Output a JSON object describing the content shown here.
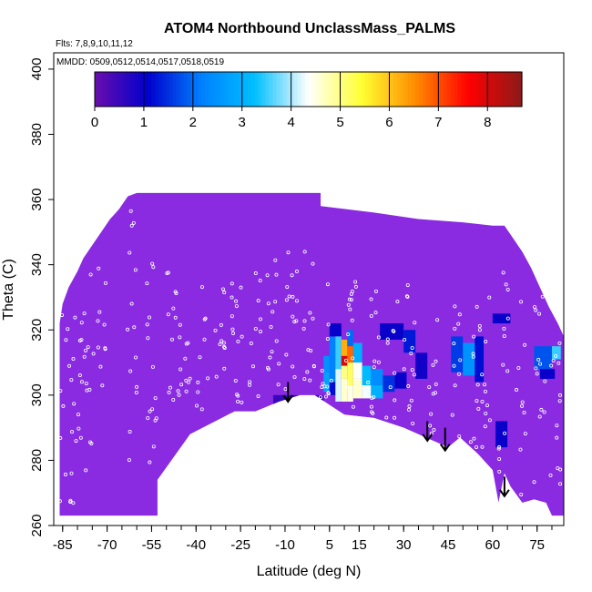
{
  "chart_data": {
    "type": "heatmap",
    "title": "ATOM4 Northbound UnclassMass_PALMS",
    "subtitle_flights": "Flts: 7,8,9,10,11,12",
    "subtitle_dates": "MMDD: 0509,0512,0514,0517,0518,0519",
    "xlabel": "Latitude (deg N)",
    "ylabel": "Theta (C)",
    "xlim": [
      -88,
      84
    ],
    "ylim": [
      260,
      405
    ],
    "x_ticks": [
      -85,
      -70,
      -55,
      -40,
      -25,
      -10,
      5,
      15,
      30,
      45,
      60,
      75
    ],
    "y_ticks": [
      260,
      280,
      300,
      320,
      340,
      360,
      380,
      400
    ],
    "colorbar": {
      "min": 0,
      "max": 8.7,
      "ticks": [
        0,
        1,
        2,
        3,
        4,
        5,
        6,
        7,
        8
      ],
      "colors": [
        "#6a0dad",
        "#0000cd",
        "#0080ff",
        "#00bfff",
        "#ffffff",
        "#ffff33",
        "#ff8c00",
        "#ff0000",
        "#8b1a1a"
      ]
    },
    "background_color": "#8a2be2",
    "domain_top": [
      [
        -86,
        322
      ],
      [
        -85,
        328
      ],
      [
        -83,
        333
      ],
      [
        -80,
        338
      ],
      [
        -78,
        342
      ],
      [
        -75,
        346
      ],
      [
        -72,
        350
      ],
      [
        -69,
        354
      ],
      [
        -66,
        357
      ],
      [
        -63,
        361
      ],
      [
        -60,
        362
      ],
      [
        2,
        362
      ],
      [
        2,
        358
      ],
      [
        20,
        356
      ],
      [
        35,
        354
      ],
      [
        50,
        353
      ],
      [
        60,
        352
      ],
      [
        64,
        352
      ],
      [
        67,
        348
      ],
      [
        70,
        344
      ],
      [
        73,
        339
      ],
      [
        76,
        333
      ],
      [
        79,
        327
      ],
      [
        82,
        322
      ],
      [
        84,
        318
      ]
    ],
    "ground": [
      [
        -86,
        263
      ],
      [
        -53,
        263
      ],
      [
        -53,
        274
      ],
      [
        -42,
        288
      ],
      [
        -27,
        295
      ],
      [
        -20,
        295
      ],
      [
        -12,
        298
      ],
      [
        -5,
        300
      ],
      [
        0,
        300
      ],
      [
        5,
        297
      ],
      [
        10,
        294
      ],
      [
        20,
        293
      ],
      [
        30,
        290
      ],
      [
        40,
        286
      ],
      [
        45,
        284
      ],
      [
        49,
        287
      ],
      [
        55,
        282
      ],
      [
        60,
        277
      ],
      [
        62,
        267
      ],
      [
        64,
        276
      ],
      [
        66,
        272
      ],
      [
        70,
        267
      ],
      [
        74,
        268
      ],
      [
        78,
        267
      ],
      [
        80,
        263
      ],
      [
        84,
        263
      ]
    ],
    "cells": [
      {
        "x": [
          3,
          5
        ],
        "y": [
          307,
          312
        ],
        "v": 2.5
      },
      {
        "x": [
          3,
          5
        ],
        "y": [
          301,
          307
        ],
        "v": 2.8
      },
      {
        "x": [
          5,
          7
        ],
        "y": [
          304,
          318
        ],
        "v": 2.2
      },
      {
        "x": [
          5,
          7
        ],
        "y": [
          300,
          304
        ],
        "v": 1.2
      },
      {
        "x": [
          5,
          9
        ],
        "y": [
          318,
          322
        ],
        "v": 1.0
      },
      {
        "x": [
          7,
          9
        ],
        "y": [
          308,
          318
        ],
        "v": 3.5
      },
      {
        "x": [
          7,
          9
        ],
        "y": [
          298,
          308
        ],
        "v": 4.2
      },
      {
        "x": [
          9,
          11
        ],
        "y": [
          312,
          317
        ],
        "v": 6.2
      },
      {
        "x": [
          9,
          11
        ],
        "y": [
          309,
          312
        ],
        "v": 8.0
      },
      {
        "x": [
          9,
          11
        ],
        "y": [
          305,
          309
        ],
        "v": 5.0
      },
      {
        "x": [
          9,
          11
        ],
        "y": [
          298,
          305
        ],
        "v": 4.6
      },
      {
        "x": [
          11,
          13
        ],
        "y": [
          315,
          320
        ],
        "v": 2.0
      },
      {
        "x": [
          11,
          13
        ],
        "y": [
          310,
          315
        ],
        "v": 6.8
      },
      {
        "x": [
          11,
          13
        ],
        "y": [
          303,
          310
        ],
        "v": 5.2
      },
      {
        "x": [
          11,
          13
        ],
        "y": [
          298,
          303
        ],
        "v": 4.5
      },
      {
        "x": [
          13,
          16
        ],
        "y": [
          310,
          316
        ],
        "v": 3.0
      },
      {
        "x": [
          13,
          16
        ],
        "y": [
          305,
          310
        ],
        "v": 4.4
      },
      {
        "x": [
          13,
          16
        ],
        "y": [
          299,
          305
        ],
        "v": 4.6
      },
      {
        "x": [
          16,
          19
        ],
        "y": [
          303,
          309
        ],
        "v": 3.2
      },
      {
        "x": [
          16,
          19
        ],
        "y": [
          299,
          303
        ],
        "v": 4.3
      },
      {
        "x": [
          19,
          23
        ],
        "y": [
          303,
          308
        ],
        "v": 2.4
      },
      {
        "x": [
          19,
          23
        ],
        "y": [
          299,
          303
        ],
        "v": 3.0
      },
      {
        "x": [
          23,
          27
        ],
        "y": [
          301,
          306
        ],
        "v": 1.5
      },
      {
        "x": [
          27,
          31
        ],
        "y": [
          302,
          307
        ],
        "v": 1.0
      },
      {
        "x": [
          -14,
          3
        ],
        "y": [
          297,
          300
        ],
        "v": 0.5
      },
      {
        "x": [
          22,
          30
        ],
        "y": [
          317,
          322
        ],
        "v": 1.0
      },
      {
        "x": [
          30,
          34
        ],
        "y": [
          313,
          320
        ],
        "v": 1.3
      },
      {
        "x": [
          34,
          38
        ],
        "y": [
          305,
          313
        ],
        "v": 0.9
      },
      {
        "x": [
          46,
          50
        ],
        "y": [
          307,
          318
        ],
        "v": 1.6
      },
      {
        "x": [
          50,
          54
        ],
        "y": [
          306,
          316
        ],
        "v": 2.5
      },
      {
        "x": [
          54,
          57
        ],
        "y": [
          304,
          318
        ],
        "v": 1.2
      },
      {
        "x": [
          60,
          66
        ],
        "y": [
          322,
          325
        ],
        "v": 1.0
      },
      {
        "x": [
          61,
          65
        ],
        "y": [
          284,
          292
        ],
        "v": 1.0
      },
      {
        "x": [
          74,
          80
        ],
        "y": [
          308,
          315
        ],
        "v": 1.8
      },
      {
        "x": [
          80,
          83
        ],
        "y": [
          311,
          315
        ],
        "v": 3.5
      },
      {
        "x": [
          76,
          81
        ],
        "y": [
          305,
          308
        ],
        "v": 1.0
      }
    ],
    "arrows": [
      {
        "x": -9,
        "y_top": 304,
        "y_bottom": 298
      },
      {
        "x": 38,
        "y_top": 292,
        "y_bottom": 286
      },
      {
        "x": 44,
        "y_top": 290,
        "y_bottom": 283
      },
      {
        "x": 64,
        "y_top": 275,
        "y_bottom": 269
      }
    ]
  }
}
